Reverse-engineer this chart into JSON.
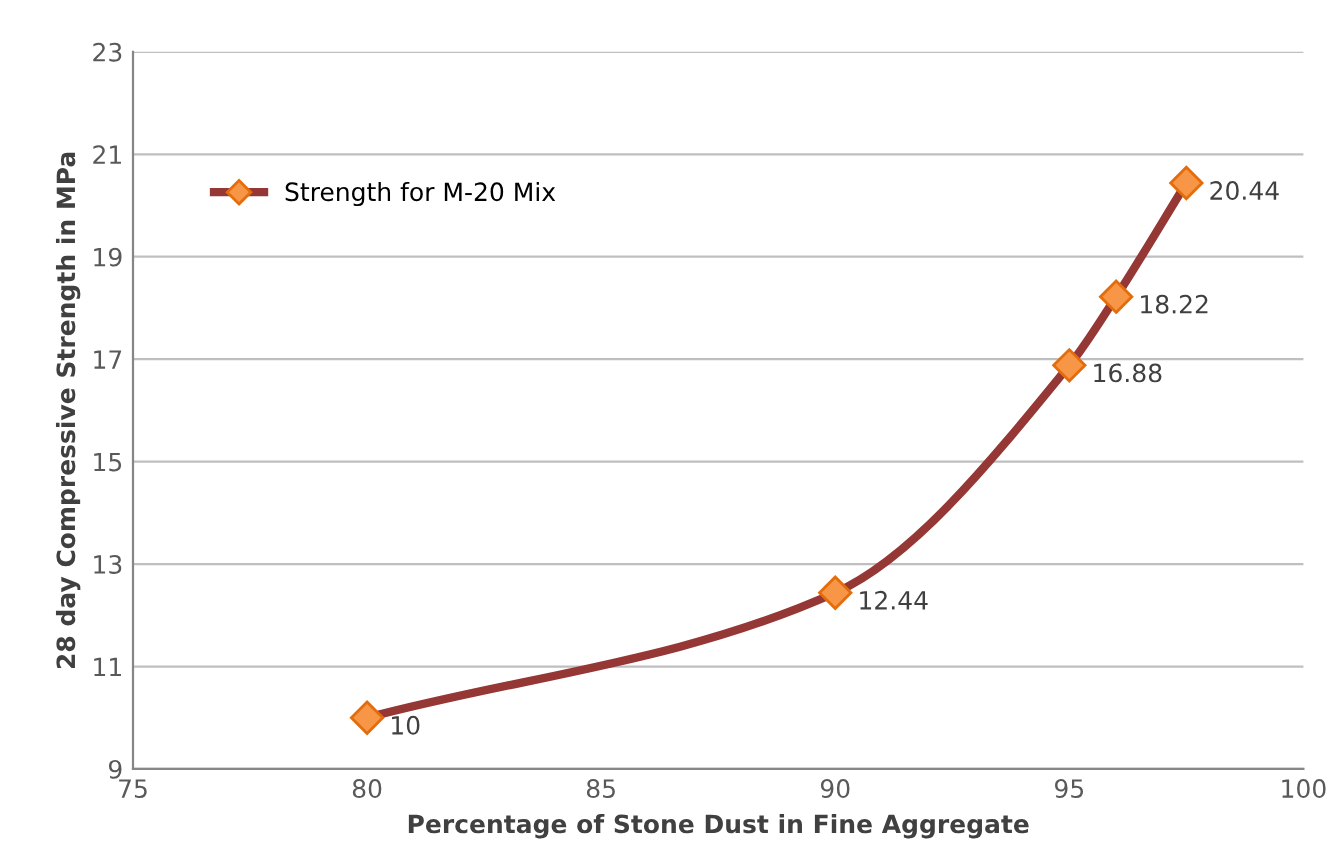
{
  "chart_data": {
    "type": "line",
    "xlabel": "Percentage of Stone Dust in Fine Aggregate",
    "ylabel": "28 day Compressive Strength in MPa",
    "x": [
      80,
      90,
      95,
      96,
      97.5
    ],
    "series": [
      {
        "name": "Strength for M-20 Mix",
        "color": "#953735",
        "values": [
          10,
          12.44,
          16.88,
          18.22,
          20.44
        ]
      }
    ],
    "xlim": [
      75,
      100
    ],
    "xticks": [
      75,
      80,
      85,
      90,
      95,
      100
    ],
    "ylim": [
      9,
      23
    ],
    "yticks": [
      9,
      11,
      13,
      15,
      17,
      19,
      21,
      23
    ],
    "grid": "y",
    "legend": "top left",
    "marker": "diamond",
    "line_style": "solid",
    "data_labels": true
  }
}
